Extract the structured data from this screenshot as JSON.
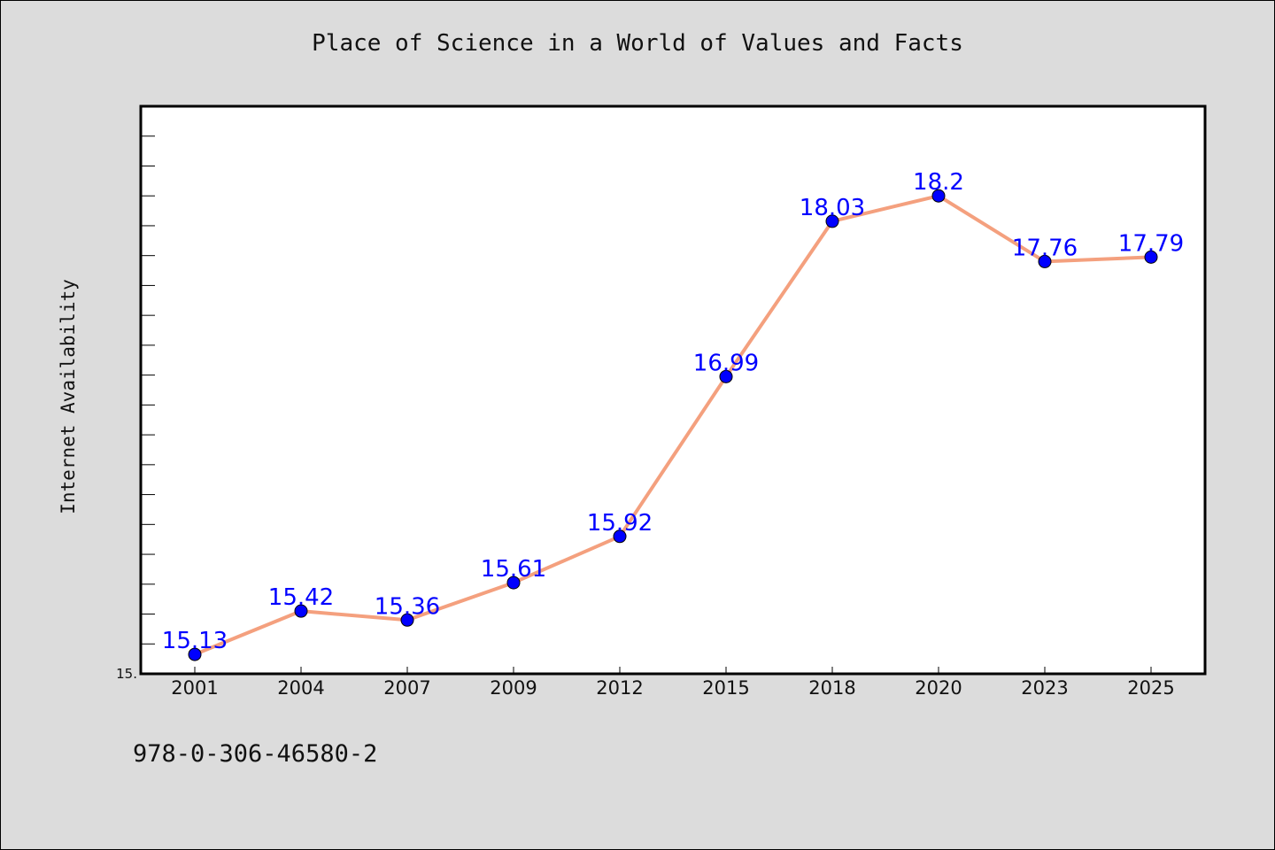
{
  "chart_data": {
    "type": "line",
    "title": "Place of Science in a World of Values and Facts",
    "xlabel": "",
    "ylabel": "Internet Availability",
    "categories": [
      "2001",
      "2004",
      "2007",
      "2009",
      "2012",
      "2015",
      "2018",
      "2020",
      "2023",
      "2025"
    ],
    "series": [
      {
        "values": [
          15.13,
          15.42,
          15.36,
          15.61,
          15.92,
          16.99,
          18.03,
          18.2,
          17.76,
          17.79
        ],
        "labels": [
          "15.13",
          "15.42",
          "15.36",
          "15.61",
          "15.92",
          "16.99",
          "18.03",
          "18.2",
          "17.76",
          "17.79"
        ],
        "line_color": "#f4a07e",
        "marker_color": "#0000ff"
      }
    ],
    "ylim": [
      15.0,
      18.8
    ],
    "y_tick_label": "15.",
    "grid": false,
    "legend": "none",
    "label_color": "#0000ff"
  },
  "footer": {
    "code": "978-0-306-46580-2"
  }
}
